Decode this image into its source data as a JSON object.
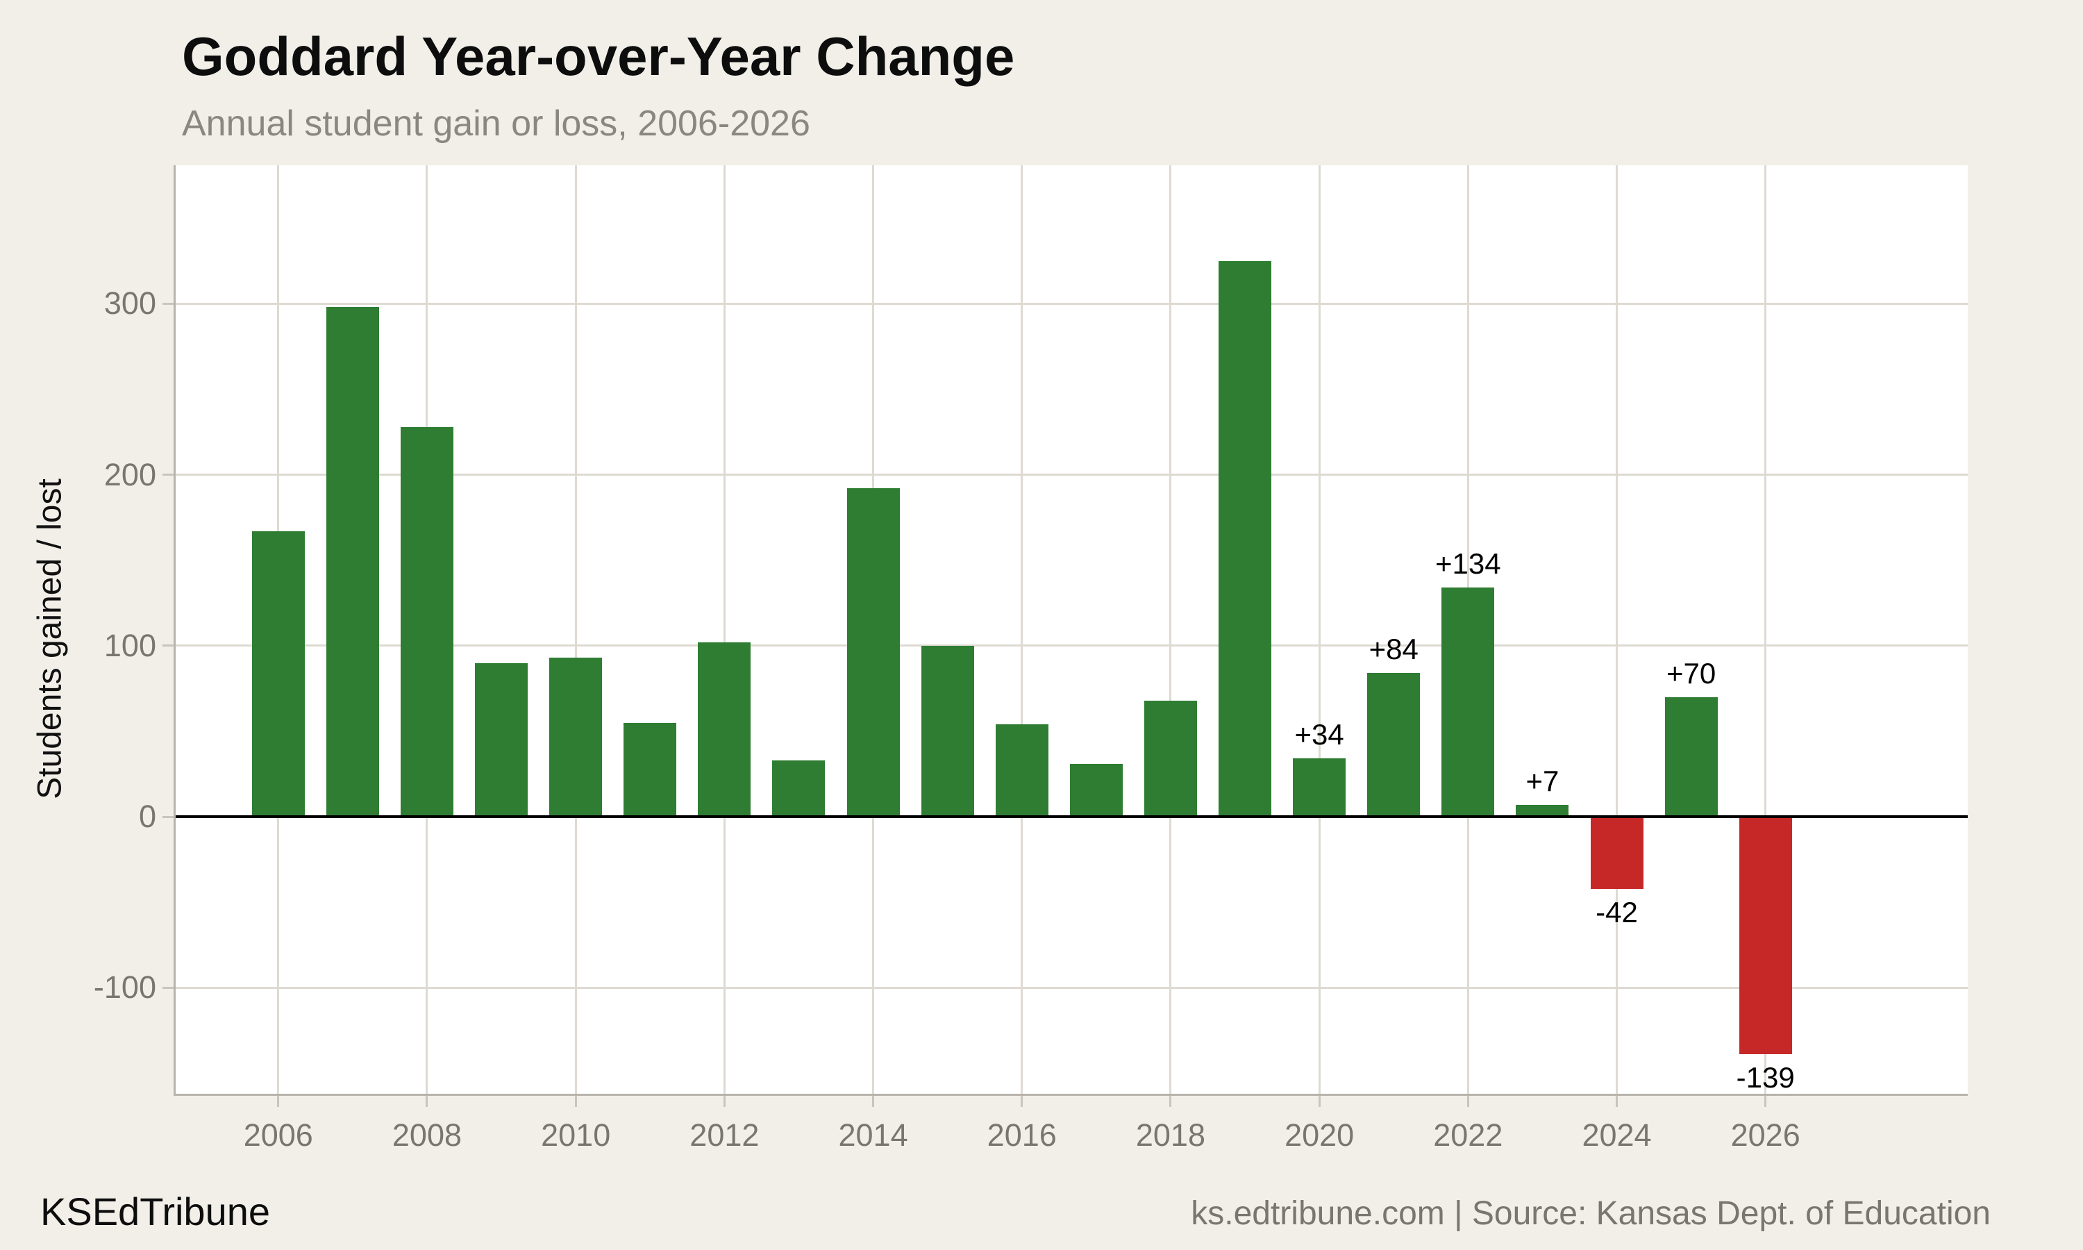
{
  "header": {
    "title": "Goddard Year-over-Year Change",
    "subtitle": "Annual student gain or loss, 2006-2026"
  },
  "footer": {
    "brand": "KSEdTribune",
    "attribution": "ks.edtribune.com | Source: Kansas Dept. of Education"
  },
  "chart_data": {
    "type": "bar",
    "title": "Goddard Year-over-Year Change",
    "subtitle": "Annual student gain or loss, 2006-2026",
    "xlabel": "",
    "ylabel": "Students gained / lost",
    "x": [
      2006,
      2007,
      2008,
      2009,
      2010,
      2011,
      2012,
      2013,
      2014,
      2015,
      2016,
      2017,
      2018,
      2019,
      2020,
      2021,
      2022,
      2023,
      2024,
      2025,
      2026
    ],
    "values": [
      167,
      298,
      228,
      90,
      93,
      55,
      102,
      33,
      192,
      100,
      54,
      31,
      68,
      325,
      34,
      84,
      134,
      7,
      -42,
      70,
      -139
    ],
    "point_labels": [
      "",
      "",
      "",
      "",
      "",
      "",
      "",
      "",
      "",
      "",
      "",
      "",
      "",
      "",
      "+34",
      "+84",
      "+134",
      "+7",
      "-42",
      "+70",
      "-139"
    ],
    "x_ticks": [
      2006,
      2008,
      2010,
      2012,
      2014,
      2016,
      2018,
      2020,
      2022,
      2024,
      2026
    ],
    "y_ticks": [
      300,
      200,
      100,
      0,
      -100
    ],
    "xlim": [
      2004.62,
      2028.72
    ],
    "ylim": [
      -162,
      381
    ],
    "grid": true,
    "legend_position": "none",
    "colors": {
      "positive_bar": "#2e7d32",
      "negative_bar": "#c62828",
      "background": "#f2efe9",
      "plot_background": "#ffffff",
      "gridline": "#dedad2",
      "axis_line": "#b9b4ab",
      "tick_mark": "#c9c4bc",
      "zero_line": "#000000",
      "tick_label": "#7a766f",
      "subtitle_text": "#8b8780",
      "attribution_text": "#7a766f"
    }
  }
}
